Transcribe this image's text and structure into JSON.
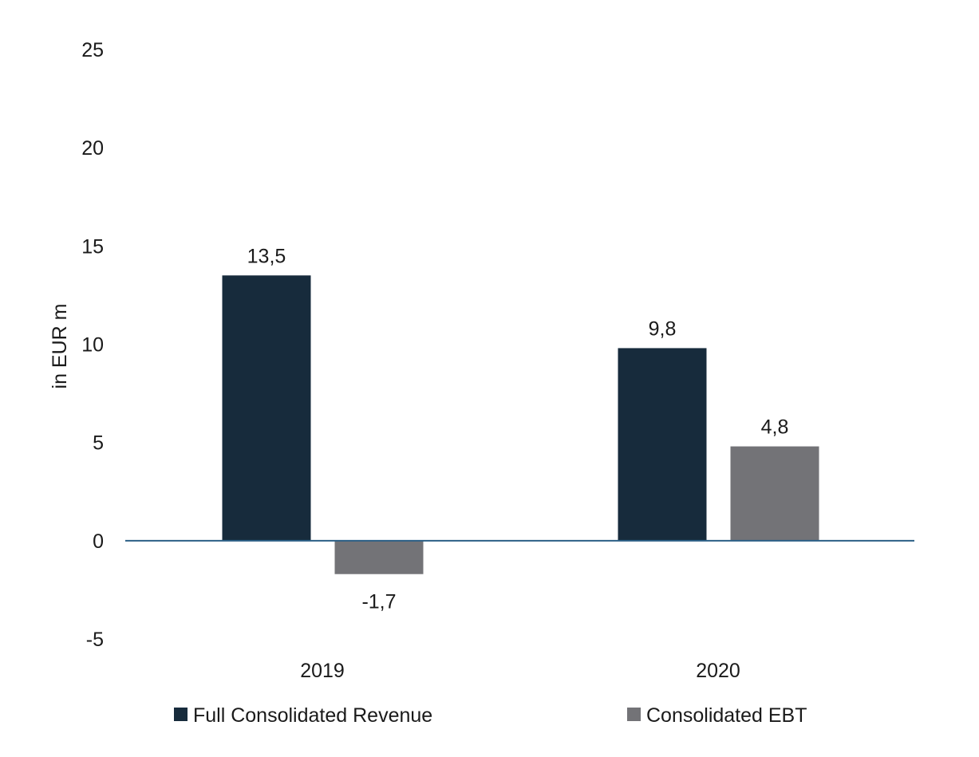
{
  "chart_data": {
    "type": "bar",
    "ylabel": "in EUR m",
    "ylim": [
      -5,
      25
    ],
    "yticks": [
      25,
      20,
      15,
      10,
      5,
      0,
      -5
    ],
    "ytick_labels": [
      "25",
      "20",
      "15",
      "10",
      "5",
      "0",
      "-5"
    ],
    "categories": [
      "2019",
      "2020"
    ],
    "series": [
      {
        "name": "Full Consolidated Revenue",
        "color": "#172b3c",
        "values": [
          13.5,
          9.8
        ],
        "labels": [
          "13,5",
          "9,8"
        ]
      },
      {
        "name": "Consolidated EBT",
        "color": "#737377",
        "values": [
          -1.7,
          4.8
        ],
        "labels": [
          "-1,7",
          "4,8"
        ]
      }
    ],
    "grid": false,
    "zero_line_color": "#2b5f86",
    "legend_position": "bottom"
  }
}
